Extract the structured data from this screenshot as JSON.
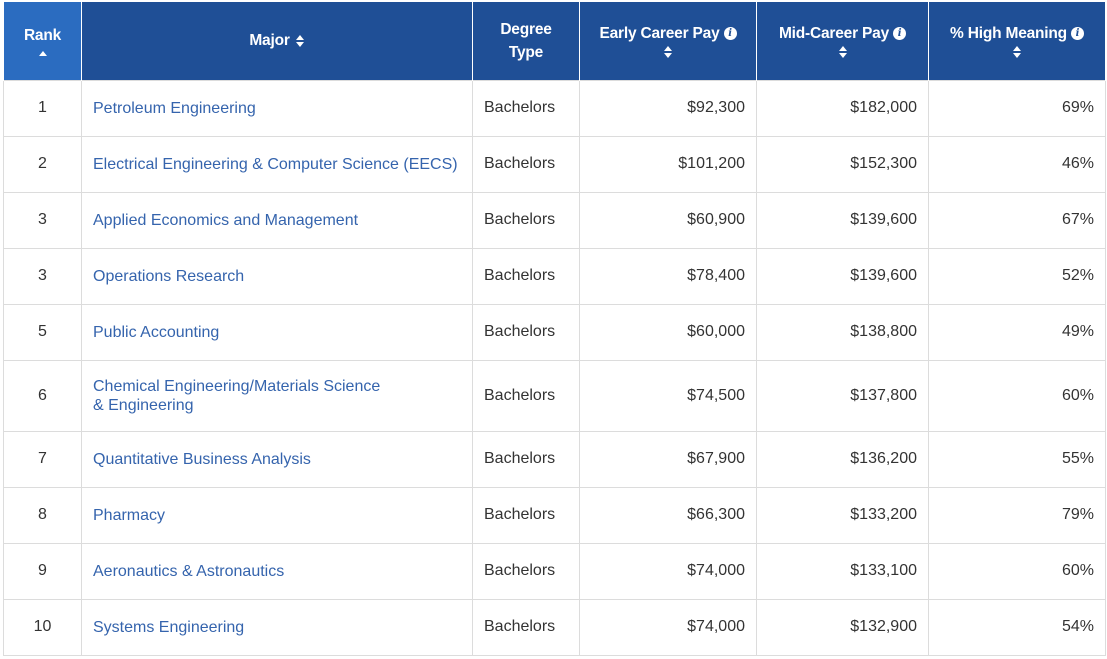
{
  "table": {
    "headers": {
      "rank": "Rank",
      "major": "Major",
      "degree_line1": "Degree",
      "degree_line2": "Type",
      "early": "Early Career Pay",
      "mid": "Mid-Career Pay",
      "meaning": "% High Meaning"
    },
    "colors": {
      "header_bg": "#1f4f96",
      "active_header_bg": "#2b6cc0",
      "link": "#3564ad"
    },
    "sort": {
      "column": "Rank",
      "direction": "ascending"
    },
    "rows": [
      {
        "rank": "1",
        "major": "Petroleum Engineering",
        "degree": "Bachelors",
        "early": "$92,300",
        "mid": "$182,000",
        "meaning": "69%"
      },
      {
        "rank": "2",
        "major": "Electrical Engineering & Computer Science (EECS)",
        "degree": "Bachelors",
        "early": "$101,200",
        "mid": "$152,300",
        "meaning": "46%"
      },
      {
        "rank": "3",
        "major": "Applied Economics and Management",
        "degree": "Bachelors",
        "early": "$60,900",
        "mid": "$139,600",
        "meaning": "67%"
      },
      {
        "rank": "3",
        "major": "Operations Research",
        "degree": "Bachelors",
        "early": "$78,400",
        "mid": "$139,600",
        "meaning": "52%"
      },
      {
        "rank": "5",
        "major": "Public Accounting",
        "degree": "Bachelors",
        "early": "$60,000",
        "mid": "$138,800",
        "meaning": "49%"
      },
      {
        "rank": "6",
        "major": "Chemical Engineering/Materials Science & Engineering",
        "degree": "Bachelors",
        "early": "$74,500",
        "mid": "$137,800",
        "meaning": "60%"
      },
      {
        "rank": "7",
        "major": "Quantitative Business Analysis",
        "degree": "Bachelors",
        "early": "$67,900",
        "mid": "$136,200",
        "meaning": "55%"
      },
      {
        "rank": "8",
        "major": "Pharmacy",
        "degree": "Bachelors",
        "early": "$66,300",
        "mid": "$133,200",
        "meaning": "79%"
      },
      {
        "rank": "9",
        "major": "Aeronautics & Astronautics",
        "degree": "Bachelors",
        "early": "$74,000",
        "mid": "$133,100",
        "meaning": "60%"
      },
      {
        "rank": "10",
        "major": "Systems Engineering",
        "degree": "Bachelors",
        "early": "$74,000",
        "mid": "$132,900",
        "meaning": "54%"
      }
    ]
  }
}
